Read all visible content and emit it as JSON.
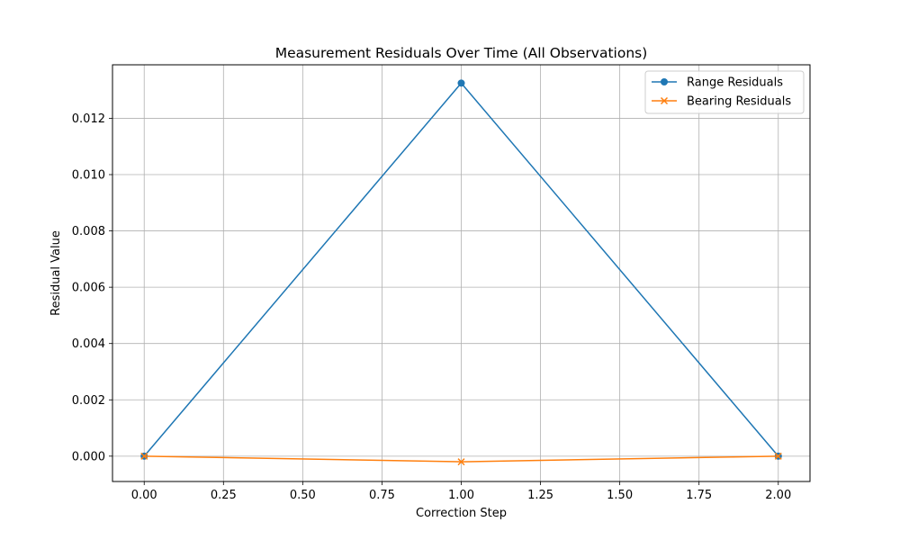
{
  "chart_data": {
    "type": "line",
    "title": "Measurement Residuals Over Time (All Observations)",
    "xlabel": "Correction Step",
    "ylabel": "Residual Value",
    "x": [
      0,
      1,
      2
    ],
    "xlim": [
      -0.1,
      2.1
    ],
    "ylim": [
      -0.0009,
      0.0139
    ],
    "x_ticks": [
      0.0,
      0.25,
      0.5,
      0.75,
      1.0,
      1.25,
      1.5,
      1.75,
      2.0
    ],
    "x_tick_labels": [
      "0.00",
      "0.25",
      "0.50",
      "0.75",
      "1.00",
      "1.25",
      "1.50",
      "1.75",
      "2.00"
    ],
    "y_ticks": [
      0.0,
      0.002,
      0.004,
      0.006,
      0.008,
      0.01,
      0.012
    ],
    "y_tick_labels": [
      "0.000",
      "0.002",
      "0.004",
      "0.006",
      "0.008",
      "0.010",
      "0.012"
    ],
    "grid": true,
    "legend_position": "top-right",
    "series": [
      {
        "name": "Range Residuals",
        "values": [
          0.0,
          0.01325,
          0.0
        ],
        "color": "#1f77b4",
        "marker": "circle"
      },
      {
        "name": "Bearing Residuals",
        "values": [
          0.0,
          -0.0002,
          0.0
        ],
        "color": "#ff7f0e",
        "marker": "x"
      }
    ]
  }
}
